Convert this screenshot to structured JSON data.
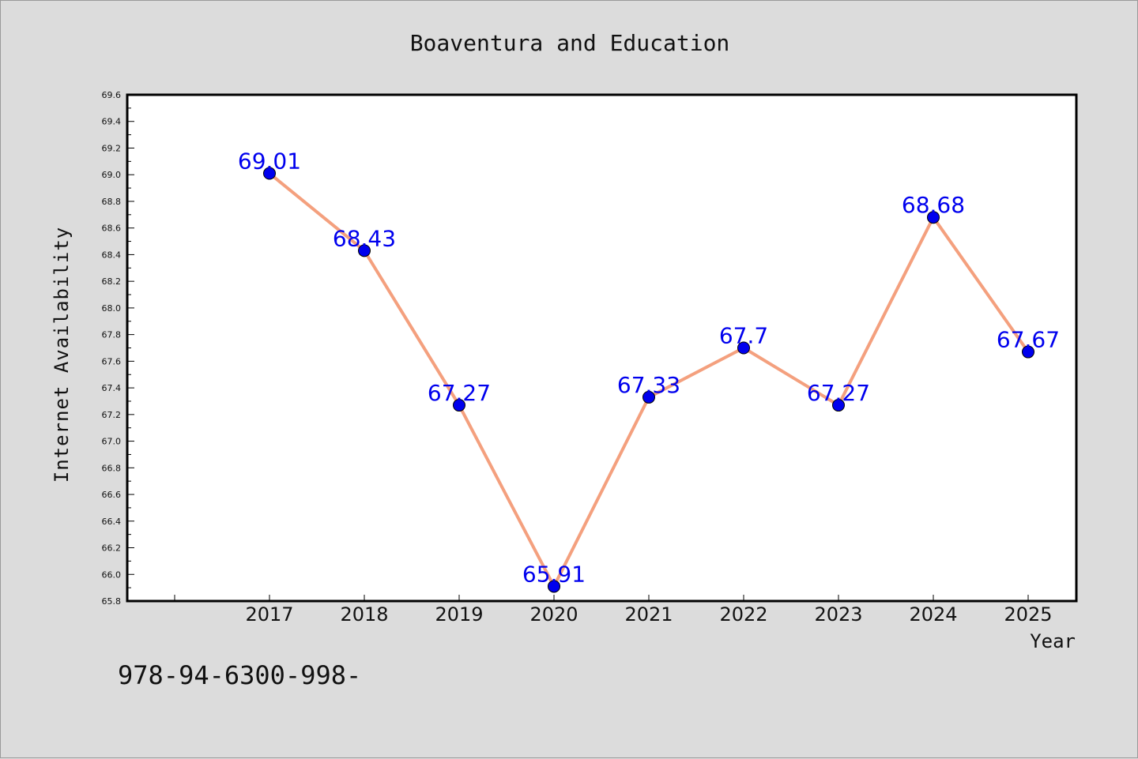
{
  "footer_text": "978-94-6300-998-",
  "chart_data": {
    "type": "line",
    "title": "Boaventura and Education",
    "xlabel": "Year",
    "ylabel": "Internet Availability",
    "x": [
      "2017",
      "2018",
      "2019",
      "2020",
      "2021",
      "2022",
      "2023",
      "2024",
      "2025"
    ],
    "series": [
      {
        "values": [
          69.01,
          68.43,
          67.27,
          65.91,
          67.33,
          67.7,
          67.27,
          68.68,
          67.67
        ],
        "labels": [
          "69.01",
          "68.43",
          "67.27",
          "65.91",
          "67.33",
          "67.7",
          "67.27",
          "68.68",
          "67.67"
        ],
        "line_color": "#f4a07e",
        "marker_color": "#0000ee",
        "label_color": "#0000ee"
      }
    ],
    "ylim": [
      65.8,
      69.6
    ],
    "yticks": [
      "65.8",
      "66.0",
      "66.2",
      "66.4",
      "66.6",
      "66.8",
      "67.0",
      "67.2",
      "67.4",
      "67.6",
      "67.8",
      "68.0",
      "68.2",
      "68.4",
      "68.6",
      "68.8",
      "69.0",
      "69.2",
      "69.4",
      "69.6"
    ],
    "grid": false,
    "legend": "none"
  }
}
